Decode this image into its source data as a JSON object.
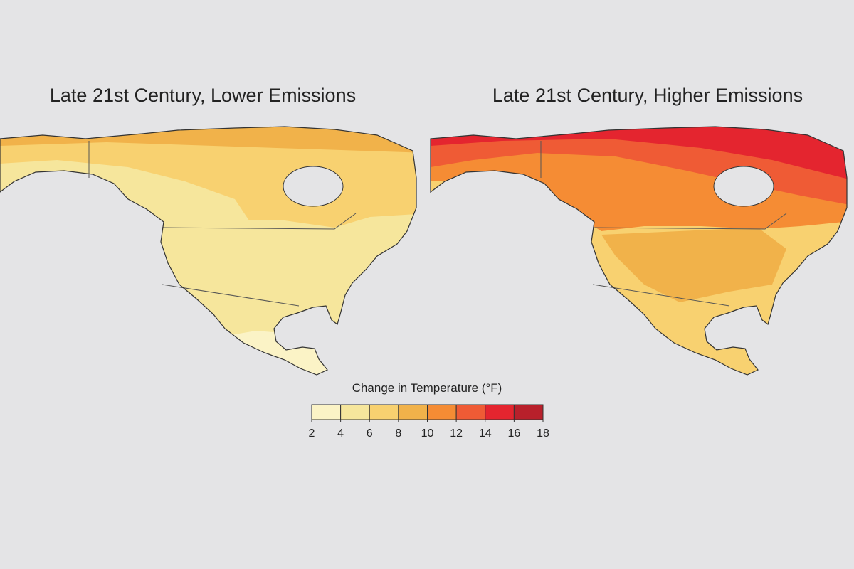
{
  "maps": [
    {
      "title": "Late 21st Century, Lower Emissions"
    },
    {
      "title": "Late 21st Century, Higher Emissions"
    }
  ],
  "legend": {
    "title": "Change in Temperature (°F)",
    "ticks": [
      2,
      4,
      6,
      8,
      10,
      12,
      14,
      16,
      18
    ],
    "colors": [
      "#fbf3c6",
      "#f6e69c",
      "#f8d170",
      "#f1b24a",
      "#f58c34",
      "#ef5b35",
      "#e4252f",
      "#b8202b"
    ]
  }
}
